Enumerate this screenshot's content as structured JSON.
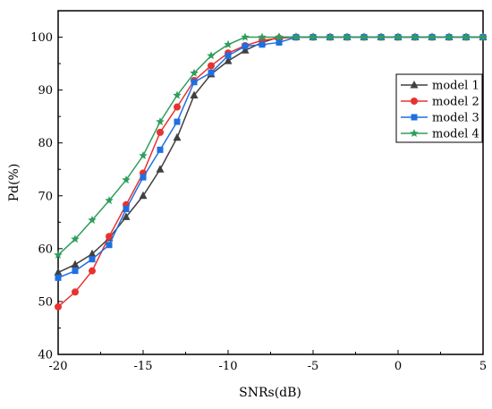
{
  "chart_data": {
    "type": "line",
    "xlabel": "SNRs(dB)",
    "ylabel": "Pd(%)",
    "xlim": [
      -20,
      5
    ],
    "ylim": [
      40,
      105
    ],
    "xticks": [
      -20,
      -15,
      -10,
      -5,
      0,
      5
    ],
    "yticks": [
      40,
      50,
      60,
      70,
      80,
      90,
      100
    ],
    "grid": false,
    "legend_position": "right",
    "x": [
      -20,
      -19,
      -18,
      -17,
      -16,
      -15,
      -14,
      -13,
      -12,
      -11,
      -10,
      -9,
      -8,
      -7,
      -6,
      -5,
      -4,
      -3,
      -2,
      -1,
      0,
      1,
      2,
      3,
      4,
      5
    ],
    "series": [
      {
        "name": "model 1",
        "color": "#404040",
        "marker": "triangle",
        "values": [
          55.5,
          57.0,
          59.0,
          62.0,
          66.0,
          70.0,
          75.0,
          81.0,
          89.0,
          93.0,
          95.5,
          97.5,
          99.0,
          100,
          100,
          100,
          100,
          100,
          100,
          100,
          100,
          100,
          100,
          100,
          100,
          100
        ]
      },
      {
        "name": "model 2",
        "color": "#e8322f",
        "marker": "circle",
        "values": [
          49.0,
          51.8,
          55.8,
          62.3,
          68.3,
          74.3,
          82.0,
          86.8,
          91.8,
          94.6,
          97.0,
          98.4,
          99.4,
          99.8,
          100,
          100,
          100,
          100,
          100,
          100,
          100,
          100,
          100,
          100,
          100,
          100
        ]
      },
      {
        "name": "model 3",
        "color": "#1f6fe0",
        "marker": "square",
        "values": [
          54.5,
          55.8,
          58.0,
          60.7,
          67.5,
          73.5,
          78.7,
          84.0,
          91.5,
          93.3,
          96.5,
          98.3,
          98.6,
          99.0,
          100,
          100,
          100,
          100,
          100,
          100,
          100,
          100,
          100,
          100,
          100,
          100
        ]
      },
      {
        "name": "model 4",
        "color": "#2e9e5b",
        "marker": "star",
        "values": [
          58.8,
          61.8,
          65.4,
          69.1,
          73.0,
          77.6,
          84.0,
          89.0,
          93.2,
          96.5,
          98.6,
          100,
          100,
          100,
          100,
          100,
          100,
          100,
          100,
          100,
          100,
          100,
          100,
          100,
          100,
          100
        ]
      }
    ]
  }
}
